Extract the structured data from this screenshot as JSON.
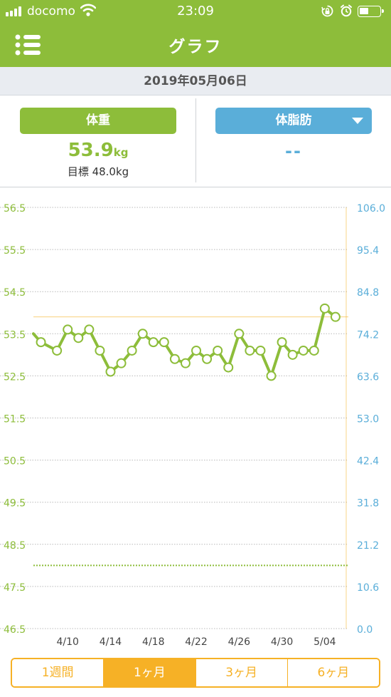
{
  "status_bar": {
    "carrier": "docomo",
    "time": "23:09"
  },
  "header": {
    "title": "グラフ"
  },
  "date": "2019年05月06日",
  "weight_panel": {
    "label": "体重",
    "value": "53.9",
    "unit": "kg",
    "target": "目標 48.0kg"
  },
  "fat_panel": {
    "label": "体脂肪",
    "value": "--"
  },
  "colors": {
    "green": "#8dbd3a",
    "blue": "#5aaed9",
    "orange": "#f6b126"
  },
  "chart_data": {
    "type": "line",
    "y_left": {
      "ticks": [
        "56.5",
        "55.5",
        "54.5",
        "53.5",
        "52.5",
        "51.5",
        "50.5",
        "49.5",
        "48.5",
        "47.5",
        "46.5"
      ],
      "ylim": [
        46.5,
        56.5
      ]
    },
    "y_right": {
      "ticks": [
        "106.0",
        "95.4",
        "84.8",
        "74.2",
        "63.6",
        "53.0",
        "42.4",
        "31.8",
        "21.2",
        "10.6",
        "0.0"
      ],
      "ylim": [
        0.0,
        106.0
      ]
    },
    "x_tick_labels": [
      "4/10",
      "4/14",
      "4/18",
      "4/22",
      "4/26",
      "4/30",
      "5/04"
    ],
    "x_ticks_day_index": [
      3,
      7,
      11,
      15,
      19,
      23,
      27
    ],
    "xlim_day_index": [
      -0.2,
      29.2
    ],
    "series": [
      {
        "color": "#8dbd3a",
        "points": [
          [
            -0.2,
            53.5
          ],
          [
            0.5,
            53.3
          ],
          [
            2,
            53.1
          ],
          [
            3,
            53.6
          ],
          [
            4,
            53.4
          ],
          [
            5,
            53.6
          ],
          [
            6,
            53.1
          ],
          [
            7,
            52.6
          ],
          [
            8,
            52.8
          ],
          [
            9,
            53.1
          ],
          [
            10,
            53.5
          ],
          [
            11,
            53.3
          ],
          [
            12,
            53.3
          ],
          [
            13,
            52.9
          ],
          [
            14,
            52.8
          ],
          [
            15,
            53.1
          ],
          [
            16,
            52.9
          ],
          [
            17,
            53.1
          ],
          [
            18,
            52.7
          ],
          [
            19,
            53.5
          ],
          [
            20,
            53.1
          ],
          [
            21,
            53.1
          ],
          [
            22,
            52.5
          ],
          [
            23,
            53.3
          ],
          [
            24,
            53.0
          ],
          [
            25,
            53.1
          ],
          [
            26,
            53.1
          ],
          [
            27,
            54.1
          ],
          [
            28,
            53.9
          ]
        ]
      }
    ],
    "reference_lines": [
      {
        "value": 53.9,
        "color": "#f6b126",
        "style": "solid"
      },
      {
        "value": 48.0,
        "color": "#8dbd3a",
        "style": "dotted"
      }
    ],
    "current_day_index": 29,
    "grid": true
  },
  "range_tabs": [
    {
      "label": "1週間",
      "active": false
    },
    {
      "label": "1ヶ月",
      "active": true
    },
    {
      "label": "3ヶ月",
      "active": false
    },
    {
      "label": "6ヶ月",
      "active": false
    }
  ]
}
